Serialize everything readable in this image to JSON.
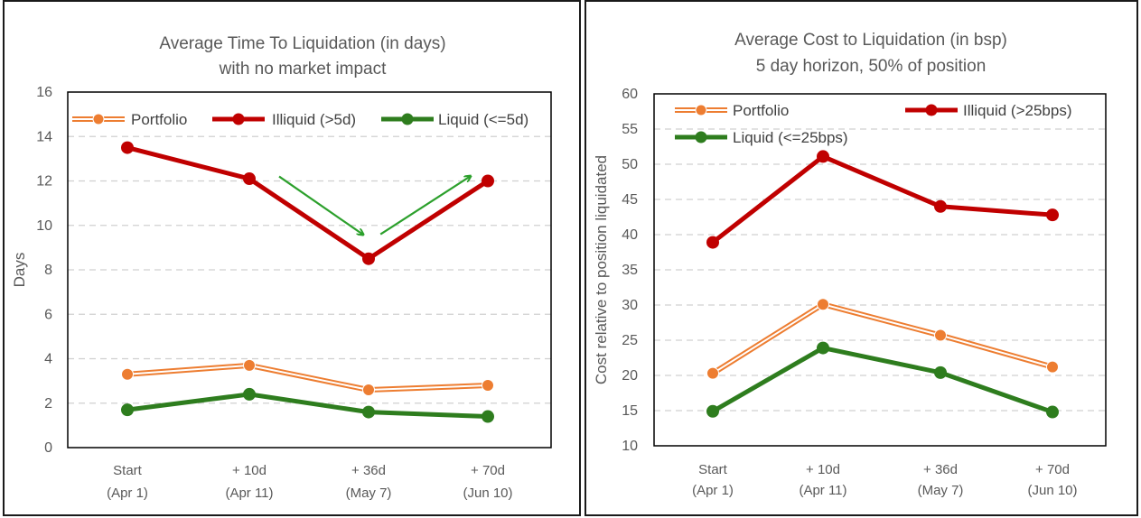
{
  "chart_data": [
    {
      "type": "line",
      "title": [
        "Average Time To Liquidation (in days)",
        "with no market impact"
      ],
      "xlabel": "",
      "ylabel": "Days",
      "ylim": [
        0,
        16
      ],
      "yticks": [
        0,
        2,
        4,
        6,
        8,
        10,
        12,
        14,
        16
      ],
      "categories": [
        [
          "Start",
          "(Apr 1)"
        ],
        [
          "+ 10d",
          "(Apr 11)"
        ],
        [
          "+ 36d",
          "(May 7)"
        ],
        [
          "+ 70d",
          "(Jun 10)"
        ]
      ],
      "grid": "horizontal-dashed",
      "legend": "top",
      "series": [
        {
          "name": "Portfolio",
          "values": [
            3.3,
            3.7,
            2.6,
            2.8
          ],
          "color": "#ED7D31",
          "style": "double"
        },
        {
          "name": "Illiquid (>5d)",
          "values": [
            13.5,
            12.1,
            8.5,
            12.0
          ],
          "color": "#C00000",
          "style": "solid"
        },
        {
          "name": "Liquid (<=5d)",
          "values": [
            1.7,
            2.4,
            1.6,
            1.4
          ],
          "color": "#2E7D1E",
          "style": "solid"
        }
      ],
      "annotations": [
        {
          "type": "arrow",
          "color": "#2CA02C",
          "from": [
            1.25,
            12.2
          ],
          "to": [
            1.95,
            9.6
          ]
        },
        {
          "type": "arrow",
          "color": "#2CA02C",
          "from": [
            2.1,
            9.6
          ],
          "to": [
            2.85,
            12.2
          ]
        }
      ]
    },
    {
      "type": "line",
      "title": [
        "Average Cost to Liquidation (in bsp)",
        "5 day horizon, 50% of position"
      ],
      "xlabel": "",
      "ylabel": "Cost relative to position liquidated",
      "ylim": [
        10,
        60
      ],
      "yticks": [
        10,
        15,
        20,
        25,
        30,
        35,
        40,
        45,
        50,
        55,
        60
      ],
      "categories": [
        [
          "Start",
          "(Apr 1)"
        ],
        [
          "+ 10d",
          "(Apr 11)"
        ],
        [
          "+ 36d",
          "(May 7)"
        ],
        [
          "+ 70d",
          "(Jun 10)"
        ]
      ],
      "grid": "horizontal-dashed",
      "legend": "top",
      "series": [
        {
          "name": "Portfolio",
          "values": [
            20.3,
            30.1,
            25.7,
            21.2
          ],
          "color": "#ED7D31",
          "style": "double"
        },
        {
          "name": "Illiquid (>25bps)",
          "values": [
            38.9,
            51.1,
            44.0,
            42.8
          ],
          "color": "#C00000",
          "style": "solid"
        },
        {
          "name": "Liquid (<=25bps)",
          "values": [
            14.9,
            23.9,
            20.4,
            14.8
          ],
          "color": "#2E7D1E",
          "style": "solid"
        }
      ]
    }
  ]
}
